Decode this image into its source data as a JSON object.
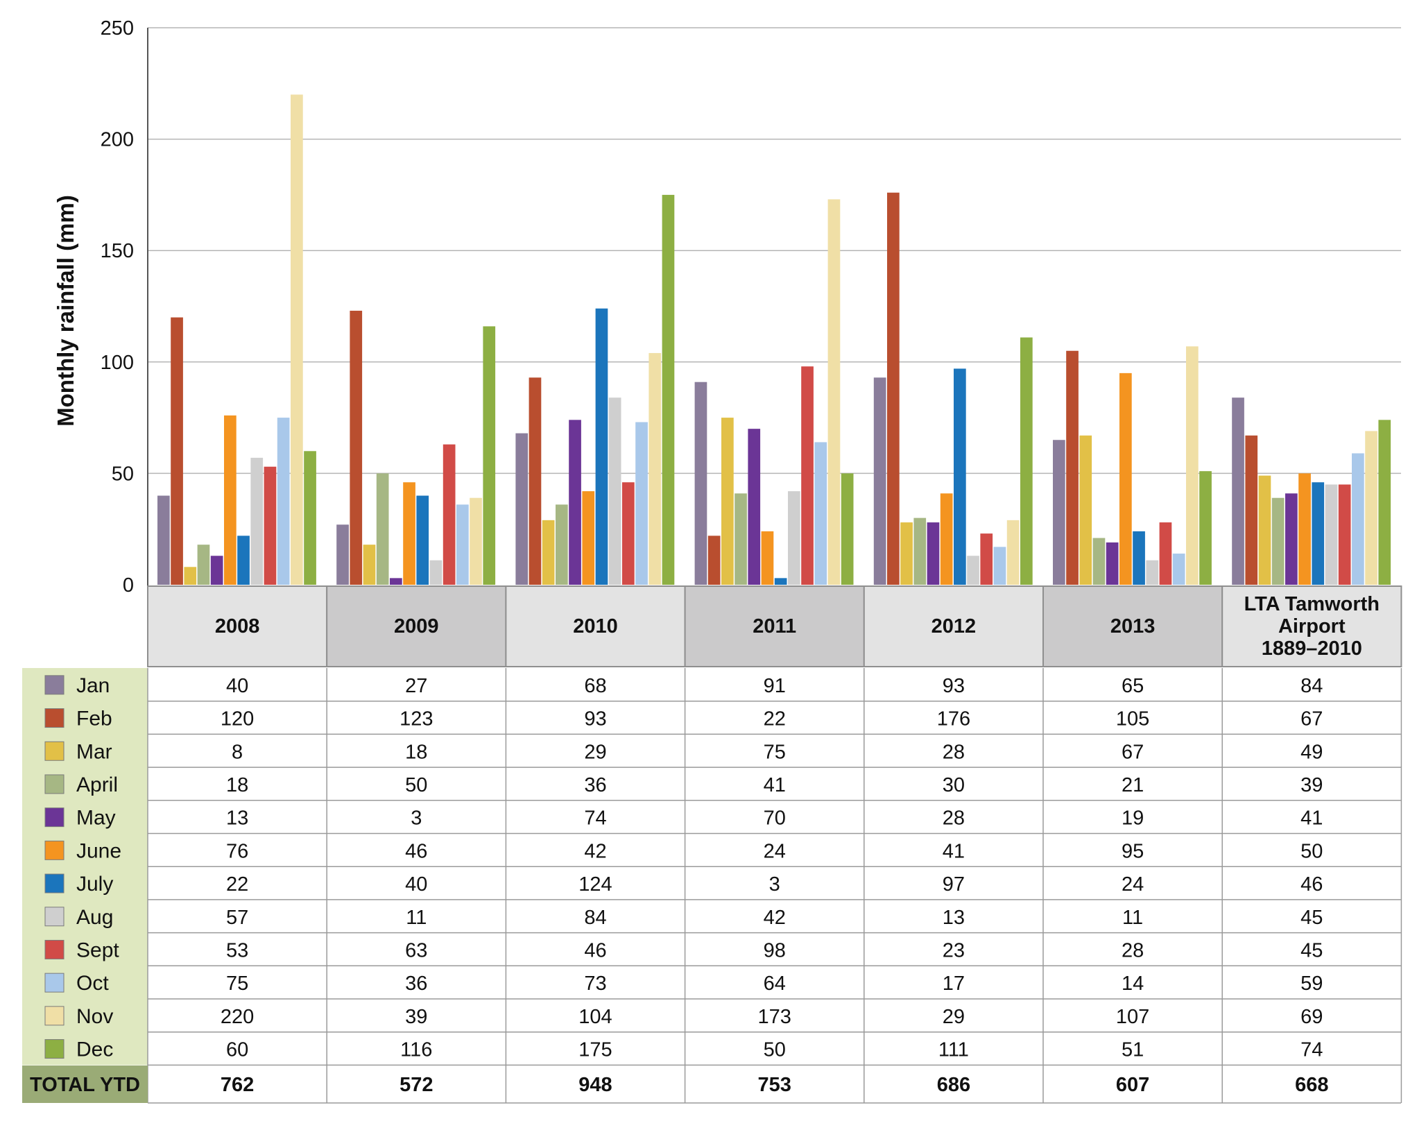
{
  "chart_data": {
    "type": "bar",
    "ylabel": "Monthly rainfall (mm)",
    "ylim": [
      0,
      250
    ],
    "yticks": [
      0,
      50,
      100,
      150,
      200,
      250
    ],
    "grid": true,
    "categories": [
      {
        "label": "2008",
        "shaded": false
      },
      {
        "label": "2009",
        "shaded": true
      },
      {
        "label": "2010",
        "shaded": false
      },
      {
        "label": "2011",
        "shaded": true
      },
      {
        "label": "2012",
        "shaded": false
      },
      {
        "label": "2013",
        "shaded": true
      },
      {
        "label": "LTA Tamworth Airport 1889–2010",
        "lines": [
          "LTA Tamworth",
          "Airport",
          "1889–2010"
        ],
        "shaded": false
      }
    ],
    "series": [
      {
        "name": "Jan",
        "color": "#8a7d9b",
        "values": [
          40,
          27,
          68,
          91,
          93,
          65,
          84
        ]
      },
      {
        "name": "Feb",
        "color": "#b94e2f",
        "values": [
          120,
          123,
          93,
          22,
          176,
          105,
          67
        ]
      },
      {
        "name": "Mar",
        "color": "#e2c047",
        "values": [
          8,
          18,
          29,
          75,
          28,
          67,
          49
        ]
      },
      {
        "name": "April",
        "color": "#a6b784",
        "values": [
          18,
          50,
          36,
          41,
          30,
          21,
          39
        ]
      },
      {
        "name": "May",
        "color": "#6b3596",
        "values": [
          13,
          3,
          74,
          70,
          28,
          19,
          41
        ]
      },
      {
        "name": "June",
        "color": "#f49420",
        "values": [
          76,
          46,
          42,
          24,
          41,
          95,
          50
        ]
      },
      {
        "name": "July",
        "color": "#1b75bc",
        "values": [
          22,
          40,
          124,
          3,
          97,
          24,
          46
        ]
      },
      {
        "name": "Aug",
        "color": "#cfcfcf",
        "values": [
          57,
          11,
          84,
          42,
          13,
          11,
          45
        ]
      },
      {
        "name": "Sept",
        "color": "#d14b47",
        "values": [
          53,
          63,
          46,
          98,
          23,
          28,
          45
        ]
      },
      {
        "name": "Oct",
        "color": "#a9c8ea",
        "values": [
          75,
          36,
          73,
          64,
          17,
          14,
          59
        ]
      },
      {
        "name": "Nov",
        "color": "#f0dfa6",
        "values": [
          220,
          39,
          104,
          173,
          29,
          107,
          69
        ]
      },
      {
        "name": "Dec",
        "color": "#8daf43",
        "values": [
          60,
          116,
          175,
          50,
          111,
          51,
          74
        ]
      }
    ],
    "totals": {
      "label": "TOTAL YTD",
      "values": [
        762,
        572,
        948,
        753,
        686,
        607,
        668
      ]
    }
  },
  "colors": {
    "grid": "#b5b5b5",
    "axis": "#555555",
    "header_light": "#e3e3e3",
    "header_dark": "#cbcacb",
    "legend_bg": "#dfe8c0",
    "total_bg": "#9aab76",
    "row_line": "#9a9a9a"
  }
}
